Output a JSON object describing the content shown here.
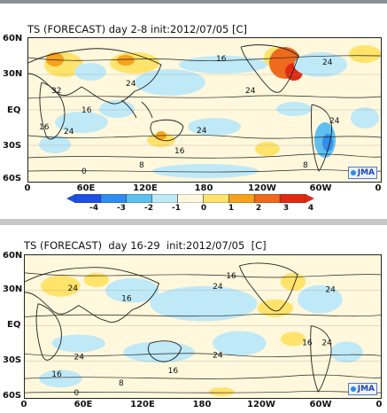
{
  "panels": [
    {
      "title": "TS (FORECAST) day 2-8 init:2012/07/05 [C]",
      "lat_labels": [
        "60N",
        "30N",
        "EQ",
        "30S",
        "60S"
      ],
      "lon_labels": [
        "0",
        "60E",
        "120E",
        "180",
        "120W",
        "60W",
        "0"
      ],
      "contour_labels": [
        "16",
        "24",
        "32",
        "24",
        "16",
        "8",
        "24",
        "16",
        "24",
        "0",
        "8",
        "16",
        "24",
        "24"
      ],
      "badge": "JMA",
      "legend_ticks": [
        "-4",
        "-3",
        "-2",
        "-1",
        "0",
        "1",
        "2",
        "3",
        "4"
      ]
    },
    {
      "title": "TS (FORECAST)  day 16-29  init:2012/07/05  [C]",
      "lat_labels": [
        "60N",
        "30N",
        "EQ",
        "30S",
        "60S"
      ],
      "lon_labels": [
        "0",
        "60E",
        "120E",
        "180",
        "120W",
        "60W",
        "0"
      ],
      "contour_labels": [
        "16",
        "24",
        "16",
        "24",
        "24",
        "16",
        "24",
        "16",
        "8",
        "0",
        "16",
        "24",
        "24"
      ],
      "badge": "JMA"
    }
  ],
  "legend_colors": [
    "#1e50e6",
    "#2f8cf0",
    "#5ec0f0",
    "#bfe9f7",
    "#fff8dc",
    "#ffe36b",
    "#f7a21c",
    "#ef6a1a",
    "#e02a12"
  ]
}
